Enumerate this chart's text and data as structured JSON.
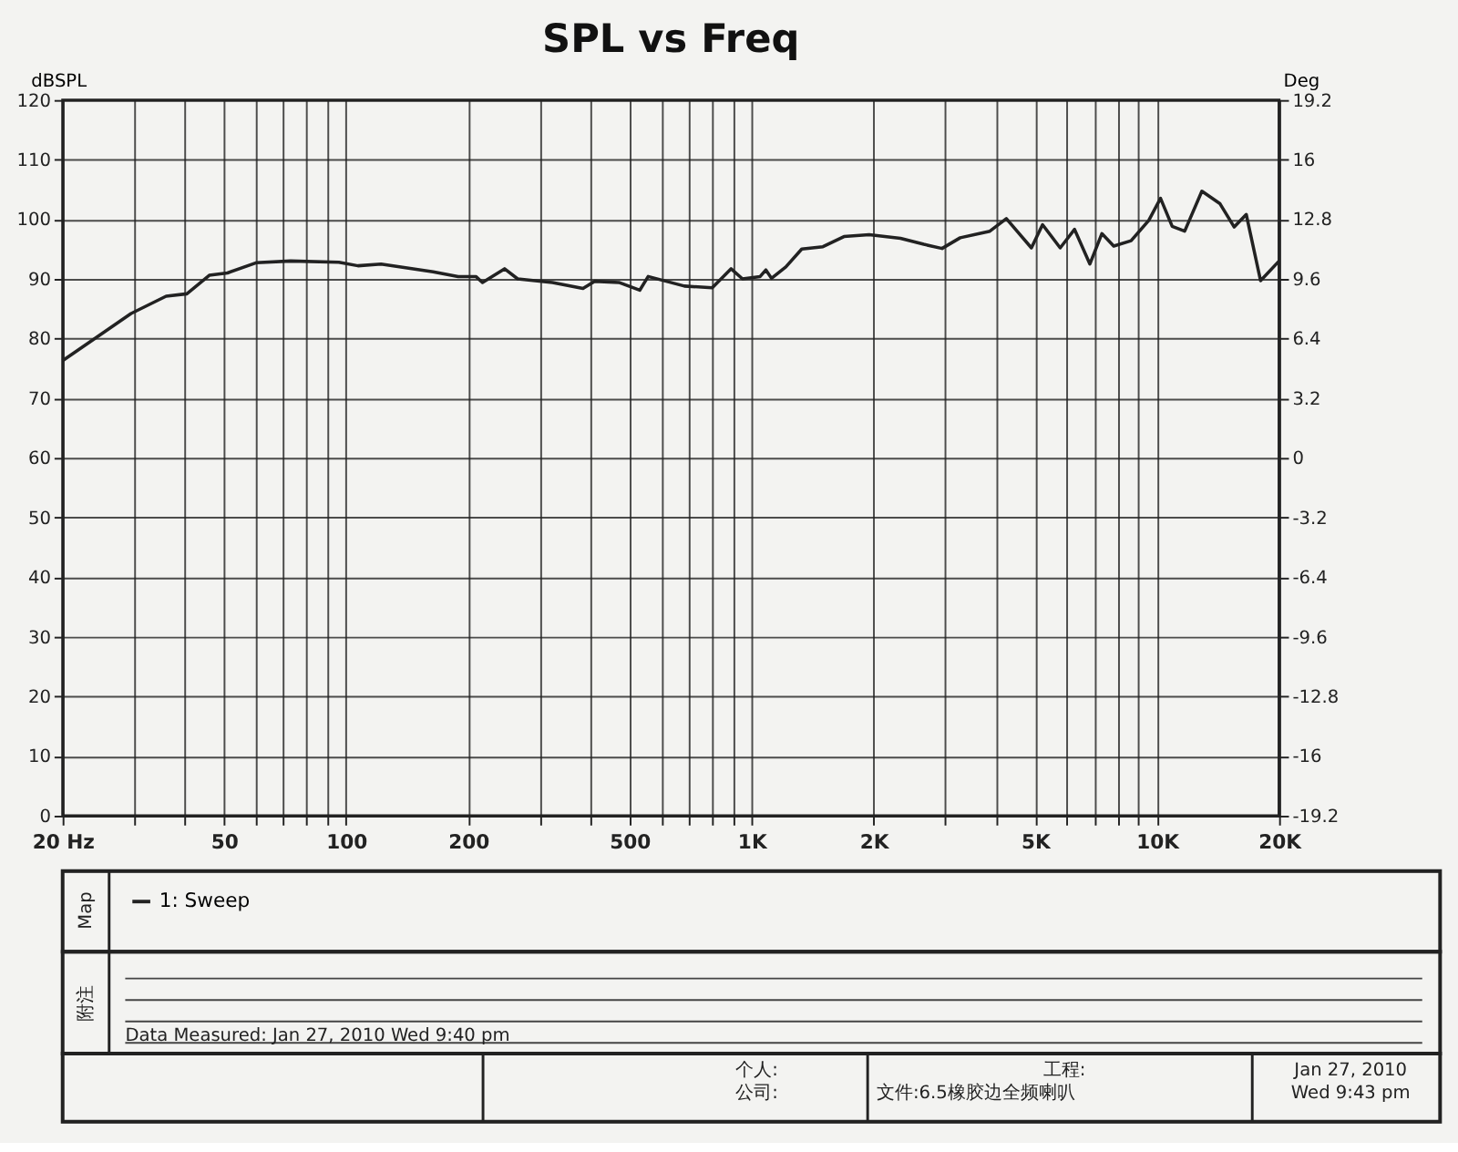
{
  "chart_data": {
    "type": "line",
    "title": "SPL vs Freq",
    "ylabel": "dBSPL",
    "y2label": "Deg",
    "x": [
      20,
      24,
      29.5,
      36,
      40.5,
      46,
      51,
      60,
      73,
      96,
      107,
      122,
      164,
      189,
      209,
      217,
      246,
      265,
      323,
      384,
      410,
      471,
      530,
      556,
      683,
      800,
      890,
      950,
      1050,
      1085,
      1120,
      1215,
      1330,
      1500,
      1690,
      1950,
      2330,
      2660,
      2950,
      3270,
      3870,
      4250,
      4900,
      5220,
      5770,
      6260,
      6830,
      7310,
      7820,
      8630,
      9540,
      10200,
      10900,
      11700,
      12900,
      14300,
      15500,
      16600,
      18000,
      20000
    ],
    "series": [
      {
        "name": "1: Sweep",
        "color": "#222222",
        "values": [
          76.3,
          80,
          84.2,
          87.1,
          87.5,
          90.6,
          91,
          92.7,
          93,
          92.8,
          92.2,
          92.5,
          91.2,
          90.4,
          90.4,
          89.4,
          91.7,
          90,
          89.4,
          88.4,
          89.6,
          89.4,
          88.1,
          90.4,
          88.8,
          88.5,
          91.7,
          90,
          90.4,
          91.5,
          90.1,
          92,
          95,
          95.4,
          97.1,
          97.4,
          96.8,
          95.8,
          95.1,
          96.9,
          98,
          100.1,
          95.2,
          99.1,
          95.2,
          98.3,
          92.5,
          97.6,
          95.5,
          96.4,
          99.8,
          103.5,
          98.8,
          98,
          104.7,
          102.6,
          98.7,
          100.8,
          89.7,
          93
        ]
      }
    ],
    "log": "x",
    "xlim": [
      20,
      20000
    ],
    "xticks": [
      {
        "value": 20,
        "label": "20 Hz"
      },
      {
        "value": 30,
        "label": null
      },
      {
        "value": 40,
        "label": null
      },
      50,
      {
        "value": 60,
        "label": null
      },
      {
        "value": 70,
        "label": null
      },
      {
        "value": 80,
        "label": null
      },
      {
        "value": 90,
        "label": null
      },
      100,
      200,
      {
        "value": 300,
        "label": null
      },
      {
        "value": 400,
        "label": null
      },
      500,
      {
        "value": 600,
        "label": null
      },
      {
        "value": 700,
        "label": null
      },
      {
        "value": 800,
        "label": null
      },
      {
        "value": 900,
        "label": null
      },
      {
        "value": 1000,
        "label": "1K"
      },
      {
        "value": 2000,
        "label": "2K"
      },
      {
        "value": 3000,
        "label": null
      },
      {
        "value": 4000,
        "label": null
      },
      {
        "value": 5000,
        "label": "5K"
      },
      {
        "value": 6000,
        "label": null
      },
      {
        "value": 7000,
        "label": null
      },
      {
        "value": 8000,
        "label": null
      },
      {
        "value": 9000,
        "label": null
      },
      {
        "value": 10000,
        "label": "10K"
      },
      {
        "value": 20000,
        "label": "20K"
      }
    ],
    "ylim": [
      0,
      120
    ],
    "yticks": [
      0,
      10,
      20,
      30,
      40,
      50,
      60,
      70,
      80,
      90,
      100,
      110,
      120
    ],
    "y2lim": [
      -19.2,
      19.2
    ],
    "y2ticks": [
      -19.2,
      -16,
      -12.8,
      -9.6,
      -6.4,
      -3.2,
      0,
      3.2,
      6.4,
      9.6,
      12.8,
      16,
      19.2
    ],
    "grid": true,
    "legend": "bottom",
    "line_style": "solid",
    "marker": "none",
    "annotations": [
      "Map",
      "附注",
      "Data Measured: Jan 27, 2010  Wed  9:40 pm",
      "个人:",
      "公司:",
      "工程:",
      "文件:6.5橡胶边全频喇叭",
      "Jan 27, 2010",
      "Wed  9:43 pm"
    ]
  }
}
